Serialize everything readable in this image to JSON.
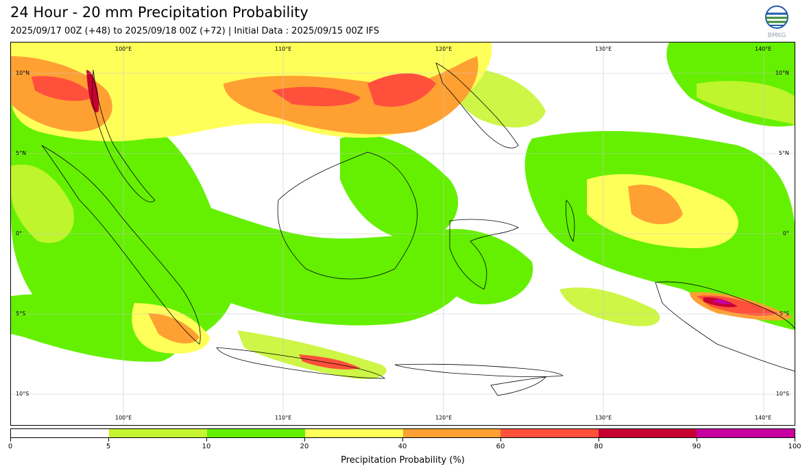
{
  "header": {
    "title": "24 Hour - 20 mm Precipitation Probability",
    "subtitle": "2025/09/17 00Z (+48) to 2025/09/18 00Z (+72) | Initial Data : 2025/09/15 00Z IFS",
    "logo_text": "BMKG"
  },
  "map": {
    "lon_labels_top": [
      "100°E",
      "110°E",
      "120°E",
      "130°E",
      "140°E"
    ],
    "lon_labels_bottom": [
      "100°E",
      "110°E",
      "120°E",
      "130°E",
      "140°E"
    ],
    "lat_labels_left": [
      "10°N",
      "5°N",
      "0°",
      "5°S",
      "10°S"
    ],
    "lat_labels_right": [
      "10°N",
      "5°N",
      "0°",
      "5°S",
      "10°S"
    ],
    "lon_range": [
      93,
      142
    ],
    "lat_range": [
      12,
      -12
    ],
    "gridlines": true
  },
  "colorbar": {
    "label": "Precipitation Probability (%)",
    "ticks": [
      "0",
      "5",
      "10",
      "20",
      "40",
      "60",
      "80",
      "90",
      "100"
    ],
    "colors": [
      "#ffffff",
      "#c8f532",
      "#64f000",
      "#ffff5a",
      "#ffa032",
      "#ff503c",
      "#c80032",
      "#c800a0"
    ]
  }
}
